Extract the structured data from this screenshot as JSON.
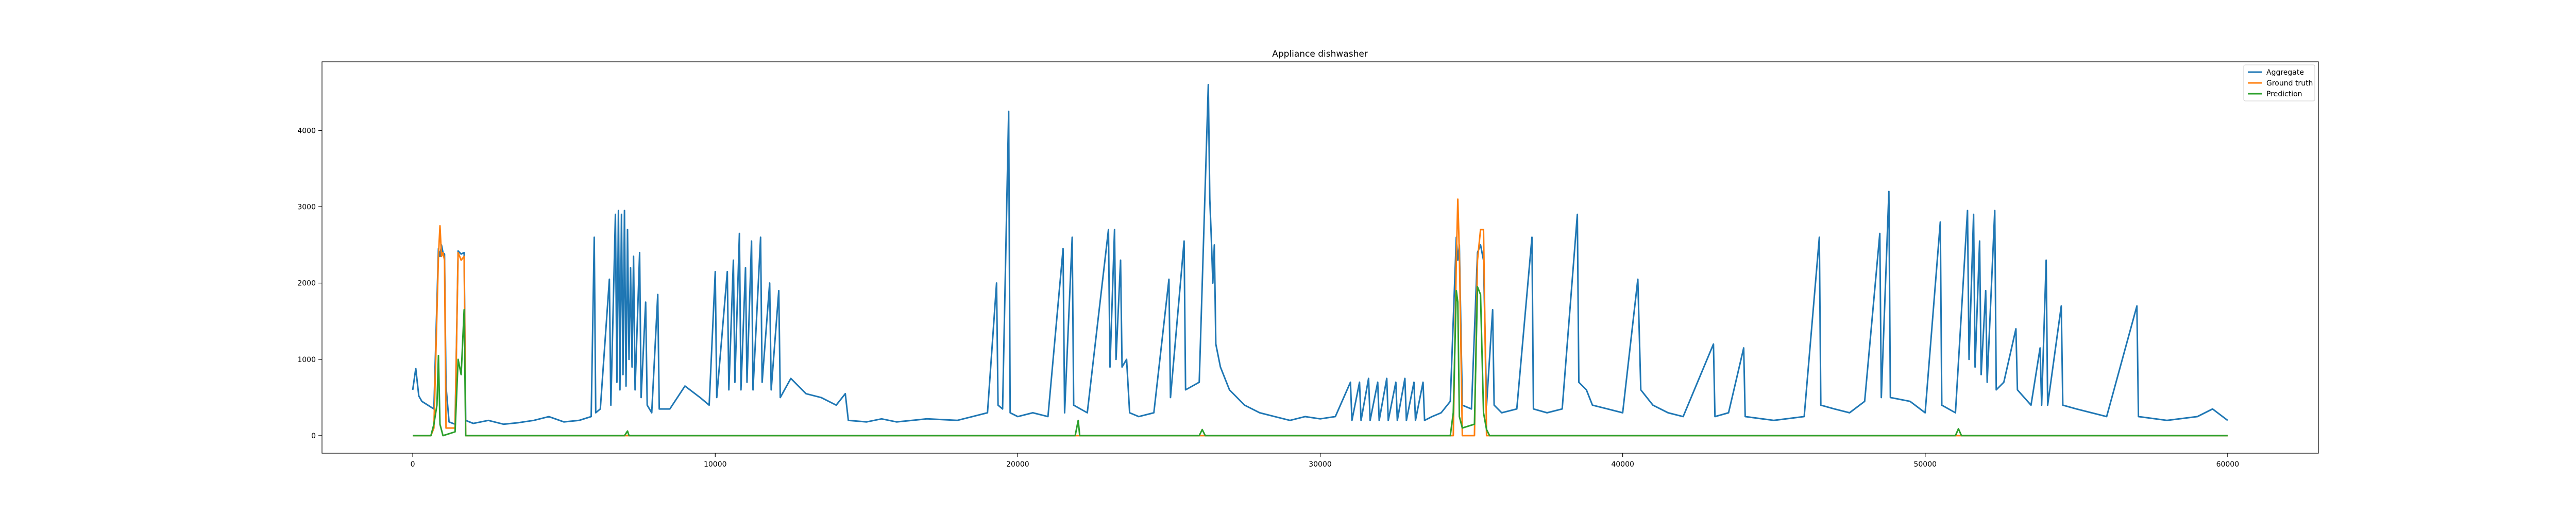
{
  "chart_data": {
    "type": "line",
    "title": "Appliance dishwasher",
    "xlabel": "",
    "ylabel": "",
    "xlim": [
      -3000,
      63000
    ],
    "ylim": [
      -230,
      4900
    ],
    "xticks": [
      0,
      10000,
      20000,
      30000,
      40000,
      50000,
      60000
    ],
    "xtick_labels": [
      "0",
      "10000",
      "20000",
      "30000",
      "40000",
      "50000",
      "60000"
    ],
    "yticks": [
      0,
      1000,
      2000,
      3000,
      4000
    ],
    "ytick_labels": [
      "0",
      "1000",
      "2000",
      "3000",
      "4000"
    ],
    "grid": false,
    "legend_position": "top-right",
    "series": [
      {
        "name": "Aggregate",
        "color": "#1f77b4",
        "points": [
          [
            0,
            600
          ],
          [
            100,
            880
          ],
          [
            200,
            520
          ],
          [
            300,
            450
          ],
          [
            500,
            400
          ],
          [
            700,
            350
          ],
          [
            850,
            2450
          ],
          [
            900,
            2350
          ],
          [
            950,
            2500
          ],
          [
            1000,
            2400
          ],
          [
            1050,
            2380
          ],
          [
            1100,
            650
          ],
          [
            1200,
            180
          ],
          [
            1400,
            150
          ],
          [
            1500,
            2420
          ],
          [
            1600,
            2380
          ],
          [
            1700,
            2400
          ],
          [
            1750,
            200
          ],
          [
            2000,
            160
          ],
          [
            2500,
            200
          ],
          [
            3000,
            150
          ],
          [
            3500,
            170
          ],
          [
            4000,
            200
          ],
          [
            4500,
            250
          ],
          [
            5000,
            180
          ],
          [
            5500,
            200
          ],
          [
            5900,
            250
          ],
          [
            6000,
            2600
          ],
          [
            6050,
            300
          ],
          [
            6200,
            350
          ],
          [
            6500,
            2050
          ],
          [
            6550,
            400
          ],
          [
            6700,
            2900
          ],
          [
            6750,
            700
          ],
          [
            6800,
            2950
          ],
          [
            6850,
            600
          ],
          [
            6900,
            2900
          ],
          [
            6950,
            800
          ],
          [
            7000,
            2950
          ],
          [
            7050,
            650
          ],
          [
            7100,
            2700
          ],
          [
            7150,
            1000
          ],
          [
            7200,
            2200
          ],
          [
            7250,
            900
          ],
          [
            7300,
            2350
          ],
          [
            7350,
            600
          ],
          [
            7500,
            2400
          ],
          [
            7550,
            500
          ],
          [
            7700,
            1750
          ],
          [
            7750,
            400
          ],
          [
            7900,
            300
          ],
          [
            8100,
            1850
          ],
          [
            8150,
            350
          ],
          [
            8500,
            350
          ],
          [
            9000,
            650
          ],
          [
            9500,
            500
          ],
          [
            9800,
            400
          ],
          [
            10000,
            2150
          ],
          [
            10050,
            500
          ],
          [
            10400,
            2150
          ],
          [
            10450,
            600
          ],
          [
            10600,
            2300
          ],
          [
            10650,
            700
          ],
          [
            10800,
            2650
          ],
          [
            10850,
            600
          ],
          [
            11000,
            2200
          ],
          [
            11050,
            700
          ],
          [
            11200,
            2550
          ],
          [
            11250,
            600
          ],
          [
            11500,
            2600
          ],
          [
            11550,
            700
          ],
          [
            11800,
            2000
          ],
          [
            11850,
            600
          ],
          [
            12100,
            1900
          ],
          [
            12150,
            500
          ],
          [
            12500,
            750
          ],
          [
            13000,
            550
          ],
          [
            13500,
            500
          ],
          [
            14000,
            400
          ],
          [
            14300,
            550
          ],
          [
            14400,
            200
          ],
          [
            15000,
            180
          ],
          [
            15500,
            220
          ],
          [
            16000,
            180
          ],
          [
            17000,
            220
          ],
          [
            18000,
            200
          ],
          [
            18500,
            250
          ],
          [
            19000,
            300
          ],
          [
            19300,
            2000
          ],
          [
            19350,
            400
          ],
          [
            19500,
            350
          ],
          [
            19700,
            4250
          ],
          [
            19750,
            300
          ],
          [
            20000,
            250
          ],
          [
            20500,
            300
          ],
          [
            21000,
            250
          ],
          [
            21500,
            2450
          ],
          [
            21550,
            300
          ],
          [
            21800,
            2600
          ],
          [
            21850,
            400
          ],
          [
            22300,
            300
          ],
          [
            23000,
            2700
          ],
          [
            23050,
            900
          ],
          [
            23200,
            2700
          ],
          [
            23250,
            1000
          ],
          [
            23400,
            2300
          ],
          [
            23450,
            900
          ],
          [
            23600,
            1000
          ],
          [
            23700,
            300
          ],
          [
            24000,
            250
          ],
          [
            24500,
            300
          ],
          [
            25000,
            2050
          ],
          [
            25050,
            500
          ],
          [
            25500,
            2550
          ],
          [
            25550,
            600
          ],
          [
            26000,
            700
          ],
          [
            26300,
            4600
          ],
          [
            26350,
            3100
          ],
          [
            26400,
            2600
          ],
          [
            26450,
            2000
          ],
          [
            26500,
            2500
          ],
          [
            26550,
            1200
          ],
          [
            26700,
            900
          ],
          [
            27000,
            600
          ],
          [
            27500,
            400
          ],
          [
            28000,
            300
          ],
          [
            28500,
            250
          ],
          [
            29000,
            200
          ],
          [
            29500,
            250
          ],
          [
            30000,
            220
          ],
          [
            30500,
            250
          ],
          [
            31000,
            700
          ],
          [
            31050,
            200
          ],
          [
            31300,
            700
          ],
          [
            31350,
            200
          ],
          [
            31600,
            750
          ],
          [
            31650,
            200
          ],
          [
            31900,
            700
          ],
          [
            31950,
            200
          ],
          [
            32200,
            750
          ],
          [
            32250,
            200
          ],
          [
            32500,
            700
          ],
          [
            32550,
            200
          ],
          [
            32800,
            750
          ],
          [
            32850,
            200
          ],
          [
            33100,
            700
          ],
          [
            33150,
            200
          ],
          [
            33400,
            700
          ],
          [
            33450,
            200
          ],
          [
            33700,
            250
          ],
          [
            34000,
            300
          ],
          [
            34300,
            450
          ],
          [
            34500,
            2600
          ],
          [
            34550,
            2300
          ],
          [
            34600,
            2500
          ],
          [
            34700,
            400
          ],
          [
            35000,
            350
          ],
          [
            35200,
            2400
          ],
          [
            35300,
            2500
          ],
          [
            35400,
            2300
          ],
          [
            35500,
            400
          ],
          [
            35700,
            1650
          ],
          [
            35750,
            400
          ],
          [
            36000,
            300
          ],
          [
            36500,
            350
          ],
          [
            37000,
            2600
          ],
          [
            37050,
            350
          ],
          [
            37500,
            300
          ],
          [
            38000,
            350
          ],
          [
            38500,
            2900
          ],
          [
            38550,
            700
          ],
          [
            38800,
            600
          ],
          [
            39000,
            400
          ],
          [
            39500,
            350
          ],
          [
            40000,
            300
          ],
          [
            40500,
            2050
          ],
          [
            40600,
            600
          ],
          [
            41000,
            400
          ],
          [
            41500,
            300
          ],
          [
            42000,
            250
          ],
          [
            43000,
            1200
          ],
          [
            43050,
            250
          ],
          [
            43500,
            300
          ],
          [
            44000,
            1150
          ],
          [
            44050,
            250
          ],
          [
            45000,
            200
          ],
          [
            46000,
            250
          ],
          [
            46500,
            2600
          ],
          [
            46550,
            400
          ],
          [
            47000,
            350
          ],
          [
            47500,
            300
          ],
          [
            48000,
            450
          ],
          [
            48500,
            2650
          ],
          [
            48550,
            500
          ],
          [
            48800,
            3200
          ],
          [
            48850,
            500
          ],
          [
            49500,
            450
          ],
          [
            50000,
            300
          ],
          [
            50500,
            2800
          ],
          [
            50550,
            400
          ],
          [
            51000,
            300
          ],
          [
            51400,
            2950
          ],
          [
            51450,
            1000
          ],
          [
            51600,
            2900
          ],
          [
            51650,
            900
          ],
          [
            51800,
            2550
          ],
          [
            51850,
            800
          ],
          [
            52000,
            1900
          ],
          [
            52050,
            700
          ],
          [
            52300,
            2950
          ],
          [
            52350,
            600
          ],
          [
            52600,
            700
          ],
          [
            53000,
            1400
          ],
          [
            53050,
            600
          ],
          [
            53500,
            400
          ],
          [
            53800,
            1150
          ],
          [
            53850,
            400
          ],
          [
            54000,
            2300
          ],
          [
            54050,
            400
          ],
          [
            54500,
            1700
          ],
          [
            54550,
            400
          ],
          [
            55000,
            350
          ],
          [
            55500,
            300
          ],
          [
            56000,
            250
          ],
          [
            57000,
            1700
          ],
          [
            57050,
            250
          ],
          [
            58000,
            200
          ],
          [
            59000,
            250
          ],
          [
            59500,
            350
          ],
          [
            60000,
            200
          ]
        ]
      },
      {
        "name": "Ground truth",
        "color": "#ff7f0e",
        "points": [
          [
            0,
            0
          ],
          [
            600,
            0
          ],
          [
            700,
            100
          ],
          [
            850,
            2350
          ],
          [
            900,
            2750
          ],
          [
            950,
            2350
          ],
          [
            1000,
            2400
          ],
          [
            1050,
            2300
          ],
          [
            1100,
            100
          ],
          [
            1400,
            100
          ],
          [
            1500,
            2400
          ],
          [
            1600,
            2300
          ],
          [
            1700,
            2350
          ],
          [
            1750,
            0
          ],
          [
            34000,
            0
          ],
          [
            34400,
            0
          ],
          [
            34500,
            2300
          ],
          [
            34550,
            3100
          ],
          [
            34600,
            2400
          ],
          [
            34700,
            0
          ],
          [
            35100,
            0
          ],
          [
            35200,
            2300
          ],
          [
            35300,
            2700
          ],
          [
            35400,
            2700
          ],
          [
            35500,
            0
          ],
          [
            60000,
            0
          ]
        ]
      },
      {
        "name": "Prediction",
        "color": "#2ca02c",
        "points": [
          [
            0,
            0
          ],
          [
            600,
            0
          ],
          [
            700,
            150
          ],
          [
            800,
            400
          ],
          [
            850,
            1050
          ],
          [
            900,
            150
          ],
          [
            1000,
            0
          ],
          [
            1400,
            50
          ],
          [
            1500,
            1000
          ],
          [
            1600,
            800
          ],
          [
            1700,
            1650
          ],
          [
            1750,
            0
          ],
          [
            7000,
            0
          ],
          [
            7100,
            60
          ],
          [
            7150,
            0
          ],
          [
            21900,
            0
          ],
          [
            22000,
            200
          ],
          [
            22050,
            0
          ],
          [
            26000,
            0
          ],
          [
            26100,
            80
          ],
          [
            26200,
            0
          ],
          [
            34300,
            0
          ],
          [
            34400,
            300
          ],
          [
            34500,
            1900
          ],
          [
            34550,
            1750
          ],
          [
            34600,
            250
          ],
          [
            34700,
            100
          ],
          [
            35100,
            150
          ],
          [
            35200,
            1950
          ],
          [
            35300,
            1850
          ],
          [
            35400,
            300
          ],
          [
            35500,
            80
          ],
          [
            35600,
            0
          ],
          [
            51000,
            0
          ],
          [
            51100,
            90
          ],
          [
            51200,
            0
          ],
          [
            60000,
            0
          ]
        ]
      }
    ]
  }
}
